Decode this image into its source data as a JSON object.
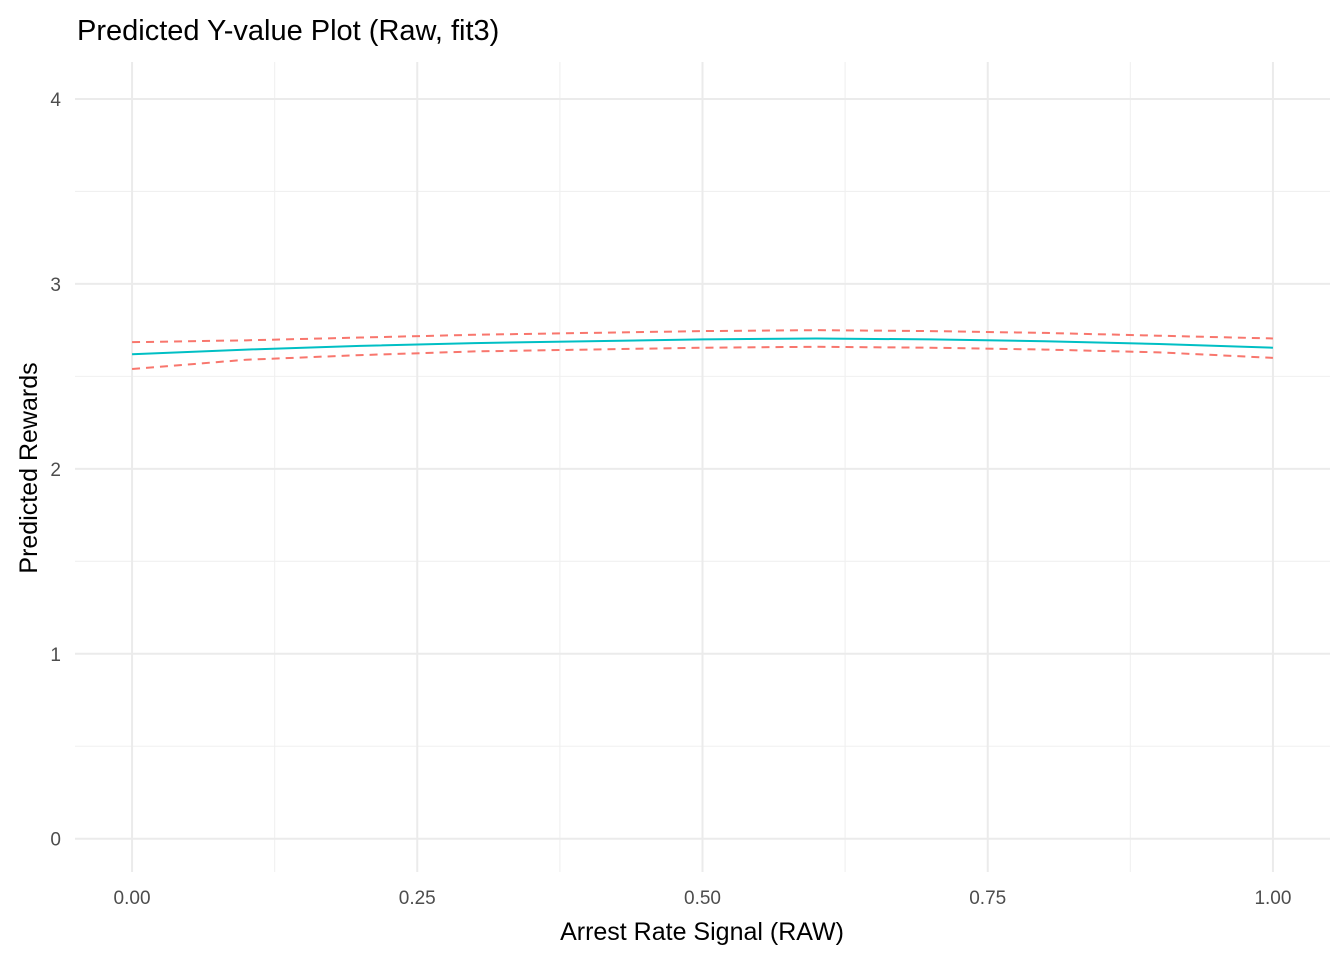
{
  "chart_data": {
    "type": "line",
    "title": "Predicted Y-value Plot (Raw, fit3)",
    "xlabel": "Arrest Rate Signal (RAW)",
    "ylabel": "Predicted Rewards",
    "xlim": [
      -0.05,
      1.05
    ],
    "ylim": [
      -0.18,
      4.2
    ],
    "x_ticks": [
      0.0,
      0.25,
      0.5,
      0.75,
      1.0
    ],
    "x_tick_labels": [
      "0.00",
      "0.25",
      "0.50",
      "0.75",
      "1.00"
    ],
    "y_ticks": [
      0,
      1,
      2,
      3,
      4
    ],
    "y_tick_labels": [
      "0",
      "1",
      "2",
      "3",
      "4"
    ],
    "grid": true,
    "legend": "none",
    "x": [
      0.0,
      0.1,
      0.2,
      0.3,
      0.4,
      0.5,
      0.6,
      0.7,
      0.8,
      0.9,
      1.0
    ],
    "series": [
      {
        "role": "fit",
        "style": "solid",
        "color": "#00BFC4",
        "values": [
          2.62,
          2.645,
          2.665,
          2.68,
          2.69,
          2.7,
          2.705,
          2.7,
          2.69,
          2.675,
          2.655
        ]
      },
      {
        "role": "upper",
        "style": "dashed",
        "color": "#F8766D",
        "values": [
          2.685,
          2.695,
          2.71,
          2.725,
          2.735,
          2.745,
          2.75,
          2.745,
          2.735,
          2.72,
          2.705
        ]
      },
      {
        "role": "lower",
        "style": "dashed",
        "color": "#F8766D",
        "values": [
          2.54,
          2.59,
          2.615,
          2.635,
          2.645,
          2.655,
          2.66,
          2.655,
          2.645,
          2.63,
          2.6
        ]
      }
    ]
  }
}
